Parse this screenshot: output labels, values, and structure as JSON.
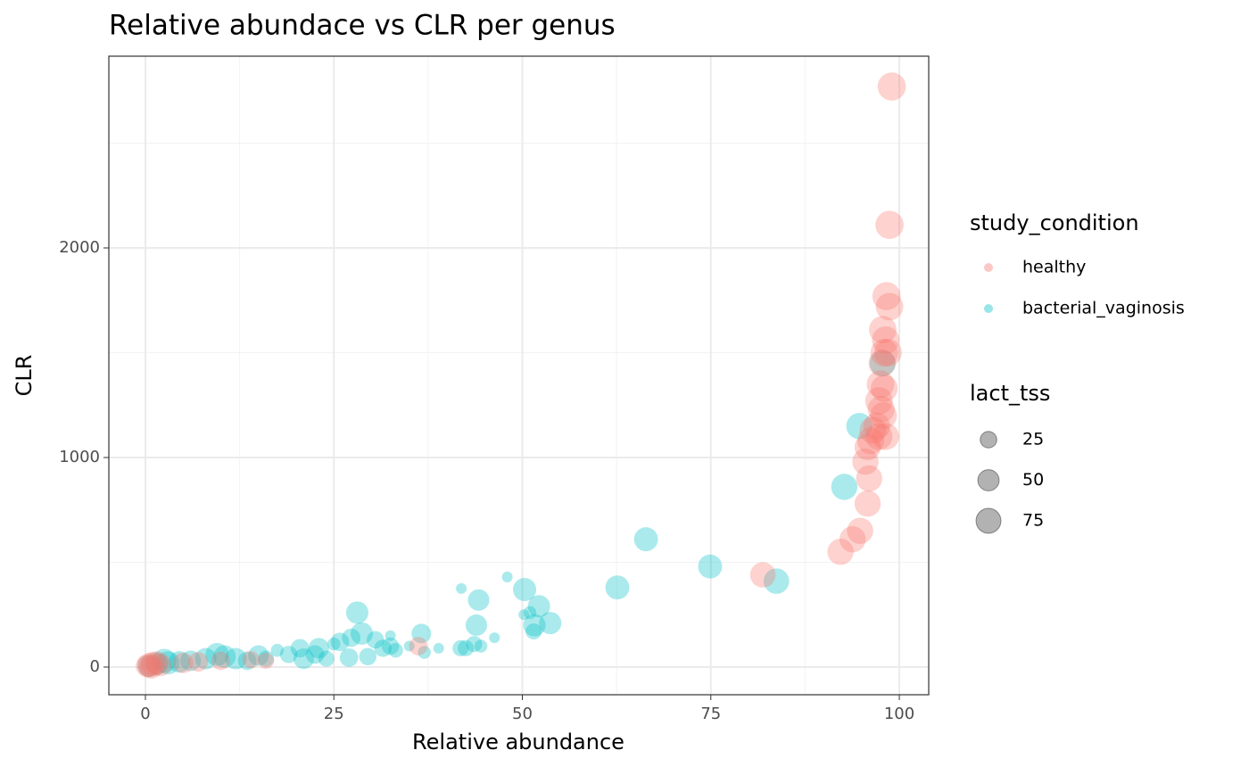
{
  "chart_data": {
    "type": "scatter",
    "title": "Relative abundace vs CLR per genus",
    "x_label": "Relative abundance",
    "y_label": "CLR",
    "xlim": [
      -4.85,
      103.9
    ],
    "ylim": [
      -132,
      2915
    ],
    "xticks": [
      0,
      25,
      50,
      75,
      100
    ],
    "yticks": [
      0,
      1000,
      2000
    ],
    "x_minor_grid": [
      12.5,
      37.5,
      62.5,
      87.5
    ],
    "y_minor_grid": [
      500,
      1500,
      2500
    ],
    "grid": true,
    "legend_title": "study_condition",
    "size_legend": {
      "title": "lact_tss",
      "values": [
        25,
        50,
        75
      ]
    },
    "series": [
      {
        "name": "healthy",
        "color": "#F8766D",
        "x": [
          99,
          98.7,
          98.3,
          98.7,
          97.8,
          98.2,
          98,
          98.5,
          97.7,
          97.5,
          98,
          97.3,
          97.6,
          97.9,
          97,
          96.5,
          97.3,
          96.2,
          98.2,
          95.8,
          95.5,
          96,
          95.8,
          94.8,
          93.8,
          92.2,
          81.9,
          36.2,
          0.5,
          1,
          1.5,
          2,
          0.2,
          0.8,
          5,
          7,
          10,
          14,
          16
        ],
        "values": [
          2770,
          2110,
          1770,
          1720,
          1610,
          1560,
          1500,
          1500,
          1450,
          1350,
          1330,
          1270,
          1230,
          1200,
          1150,
          1130,
          1100,
          1080,
          1100,
          1050,
          980,
          900,
          780,
          650,
          610,
          550,
          440,
          100,
          10,
          15,
          20,
          10,
          5,
          0,
          20,
          25,
          30,
          35,
          30
        ],
        "sizes": [
          90,
          90,
          90,
          85,
          85,
          85,
          85,
          85,
          80,
          85,
          80,
          85,
          80,
          80,
          80,
          80,
          80,
          80,
          80,
          75,
          75,
          75,
          75,
          75,
          75,
          75,
          70,
          30,
          60,
          60,
          55,
          50,
          50,
          55,
          40,
          35,
          30,
          25,
          20
        ]
      },
      {
        "name": "bacterial_vaginosis",
        "color": "#00BFC4",
        "x": [
          94.7,
          92.7,
          97.8,
          83.7,
          74.9,
          66.4,
          62.6,
          53.7,
          52.2,
          51.6,
          50.3,
          51.5,
          51,
          50.2,
          48,
          46.3,
          44.2,
          43.9,
          43.6,
          44.5,
          42.5,
          41.8,
          41.9,
          38.9,
          37,
          36.6,
          35,
          33.2,
          32.5,
          32.5,
          31.5,
          30.5,
          29.5,
          28.7,
          28.1,
          27.3,
          27,
          25.8,
          25,
          23,
          24,
          22.5,
          21,
          20.5,
          19,
          17.5,
          16,
          15,
          13.5,
          12,
          10.5,
          9.5,
          8,
          6,
          4.5,
          3,
          2.5,
          1.5,
          0.5
        ],
        "values": [
          1150,
          860,
          1450,
          410,
          480,
          610,
          380,
          210,
          290,
          200,
          370,
          170,
          260,
          250,
          430,
          140,
          320,
          200,
          110,
          100,
          90,
          90,
          375,
          90,
          70,
          160,
          100,
          80,
          100,
          150,
          90,
          130,
          50,
          160,
          260,
          140,
          45,
          120,
          110,
          90,
          40,
          60,
          40,
          90,
          60,
          80,
          40,
          55,
          30,
          40,
          50,
          60,
          40,
          30,
          25,
          20,
          30,
          15,
          5
        ],
        "sizes": [
          75,
          75,
          75,
          70,
          60,
          60,
          60,
          50,
          50,
          50,
          55,
          20,
          10,
          5,
          5,
          5,
          45,
          45,
          20,
          10,
          20,
          20,
          5,
          5,
          10,
          35,
          5,
          15,
          25,
          5,
          25,
          25,
          25,
          50,
          50,
          30,
          30,
          30,
          10,
          40,
          20,
          30,
          40,
          30,
          25,
          10,
          20,
          40,
          30,
          45,
          50,
          55,
          45,
          40,
          45,
          55,
          60,
          50,
          50
        ]
      }
    ]
  }
}
